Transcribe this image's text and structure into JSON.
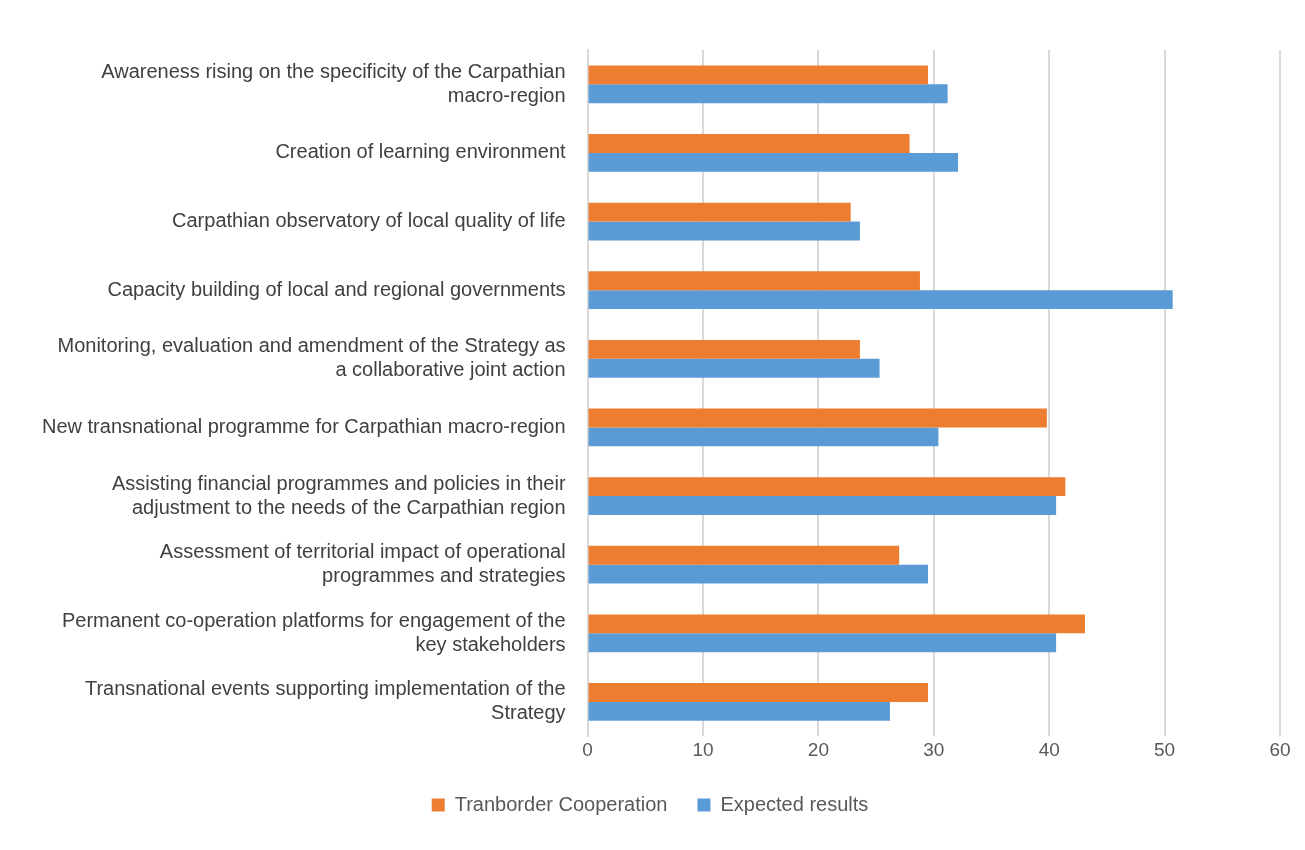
{
  "chart_data": {
    "type": "bar",
    "orientation": "horizontal",
    "categories": [
      "Awareness rising on the specificity of the Carpathian macro-region",
      "Creation of learning environment",
      "Carpathian observatory of local quality of life",
      "Capacity building of local and regional governments",
      "Monitoring, evaluation and amendment of the Strategy as a collaborative joint action",
      "New transnational programme for Carpathian macro-region",
      "Assisting financial programmes and policies in their adjustment to the needs of the Carpathian region",
      "Assessment of territorial impact of operational programmes and strategies",
      "Permanent co-operation platforms for engagement of the key stakeholders",
      "Transnational events supporting implementation of the Strategy"
    ],
    "series": [
      {
        "name": "Tranborder Cooperation",
        "color": "#ed7d31",
        "values": [
          29.5,
          27.9,
          22.8,
          28.8,
          23.6,
          39.8,
          41.4,
          27.0,
          43.1,
          29.5
        ]
      },
      {
        "name": "Expected results",
        "color": "#5b9bd5",
        "values": [
          31.2,
          32.1,
          23.6,
          50.7,
          25.3,
          30.4,
          40.6,
          29.5,
          40.6,
          26.2
        ]
      }
    ],
    "xlim": [
      0,
      60
    ],
    "xticks": [
      0,
      10,
      20,
      30,
      40,
      50,
      60
    ],
    "grid": "x",
    "legend": "bottom"
  }
}
